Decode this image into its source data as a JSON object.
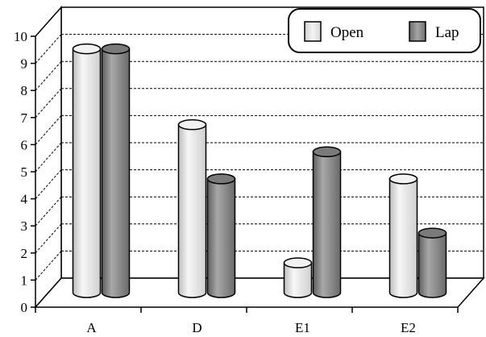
{
  "chart_data": {
    "type": "bar",
    "title": "",
    "xlabel": "",
    "ylabel": "",
    "categories": [
      "A",
      "D",
      "E1",
      "E2"
    ],
    "series": [
      {
        "name": "Open",
        "values": [
          9,
          6.2,
          1.1,
          4.2
        ],
        "color": "#e6e6e6"
      },
      {
        "name": "Lap",
        "values": [
          9,
          4.2,
          5.2,
          2.2
        ],
        "color": "#8c8c8c"
      }
    ],
    "ylim": [
      0,
      10
    ],
    "yticks": [
      "0",
      "1",
      "2",
      "3",
      "4",
      "5",
      "6",
      "7",
      "8",
      "9",
      "10"
    ],
    "grid": "horizontal dashed",
    "legend_position": "top-right",
    "style": "3d-cylinder"
  }
}
